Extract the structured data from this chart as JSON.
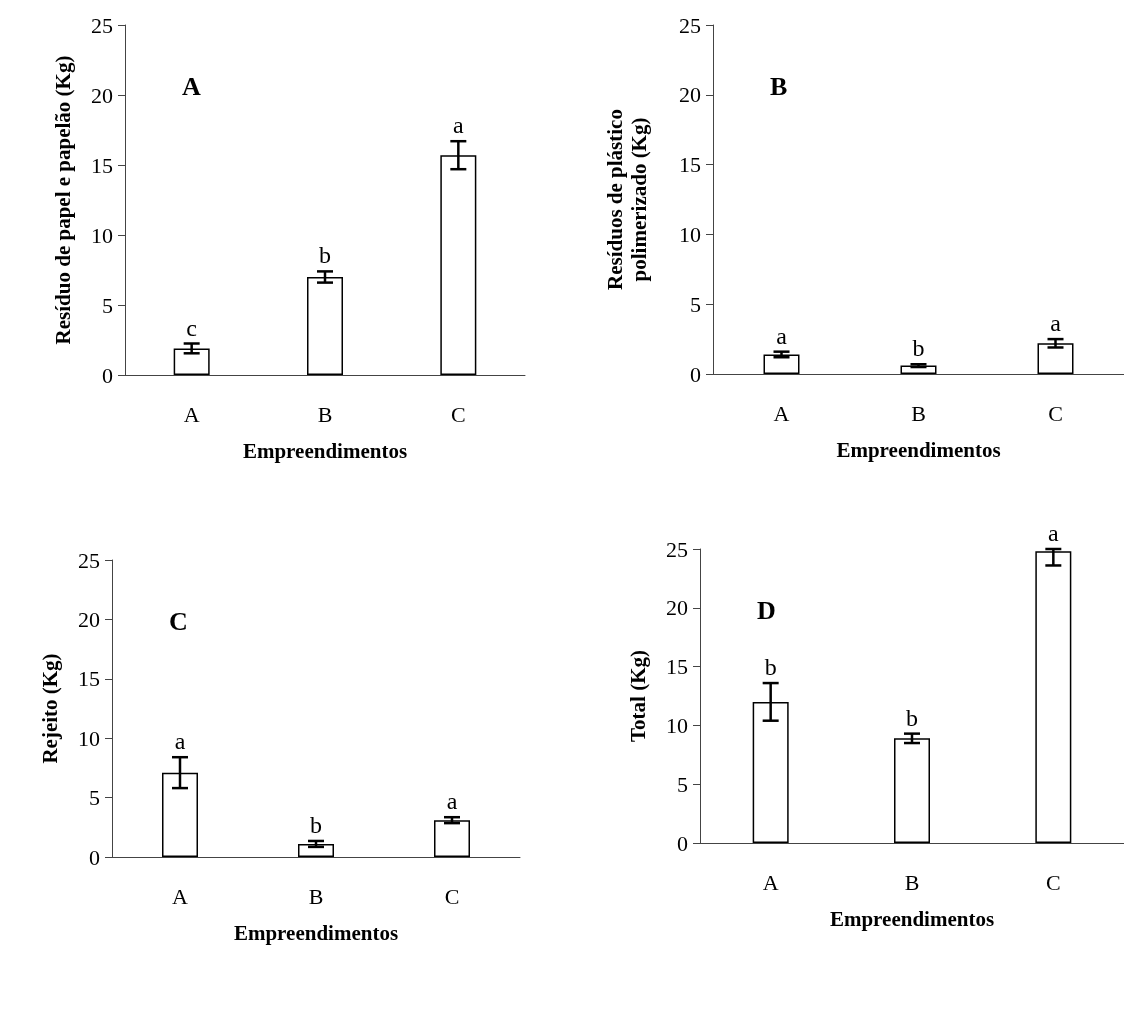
{
  "chart_data": [
    {
      "type": "bar",
      "xlabel": "Empreendimentos",
      "ylabel": "Resíduo de papel e papelão (Kg)",
      "categories": [
        "A",
        "B",
        "C"
      ],
      "values": [
        1.9,
        7.0,
        15.7
      ],
      "errors": [
        0.35,
        0.4,
        1.0
      ],
      "color": "#ffffff",
      "ylim": [
        0,
        25
      ],
      "yticks": [
        0,
        5,
        10,
        15,
        20,
        25
      ],
      "annotations": [
        "A",
        {
          "text": "c",
          "x": "A",
          "y": 2.25
        },
        {
          "text": "b",
          "x": "B",
          "y": 7.4
        },
        {
          "text": "a",
          "x": "C",
          "y": 16.7
        }
      ]
    },
    {
      "type": "bar",
      "xlabel": "Empreendimentos",
      "ylabel": "Resíduos de plástico polimerizado (Kg)",
      "categories": [
        "A",
        "B",
        "C"
      ],
      "values": [
        1.4,
        0.6,
        2.2
      ],
      "errors": [
        0.2,
        0.1,
        0.3
      ],
      "color": "#ffffff",
      "ylim": [
        0,
        25
      ],
      "yticks": [
        0,
        5,
        10,
        15,
        20,
        25
      ],
      "annotations": [
        "B",
        {
          "text": "a",
          "x": "A",
          "y": 1.6
        },
        {
          "text": "b",
          "x": "B",
          "y": 0.7
        },
        {
          "text": "a",
          "x": "C",
          "y": 2.5
        }
      ]
    },
    {
      "type": "bar",
      "xlabel": "Empreendimentos",
      "ylabel": "Rejeito (Kg)",
      "categories": [
        "A",
        "B",
        "C"
      ],
      "values": [
        7.1,
        1.1,
        3.1
      ],
      "errors": [
        1.3,
        0.25,
        0.25
      ],
      "color": "#ffffff",
      "ylim": [
        0,
        25
      ],
      "yticks": [
        0,
        5,
        10,
        15,
        20,
        25
      ],
      "annotations": [
        "C",
        {
          "text": "a",
          "x": "A",
          "y": 8.4
        },
        {
          "text": "b",
          "x": "B",
          "y": 1.35
        },
        {
          "text": "a",
          "x": "C",
          "y": 3.35
        }
      ]
    },
    {
      "type": "bar",
      "xlabel": "Empreendimentos",
      "ylabel": "Total (Kg)",
      "categories": [
        "A",
        "B",
        "C"
      ],
      "values": [
        12.0,
        8.9,
        24.8
      ],
      "errors": [
        1.6,
        0.4,
        [
          23.6,
          25.0
        ]
      ],
      "color": "#ffffff",
      "ylim": [
        0,
        25
      ],
      "yticks": [
        0,
        5,
        10,
        15,
        20,
        25
      ],
      "annotations": [
        "D",
        {
          "text": "b",
          "x": "A",
          "y": 13.6
        },
        {
          "text": "b",
          "x": "B",
          "y": 9.3
        },
        {
          "text": "a",
          "x": "C",
          "y": 25.0
        }
      ]
    }
  ]
}
